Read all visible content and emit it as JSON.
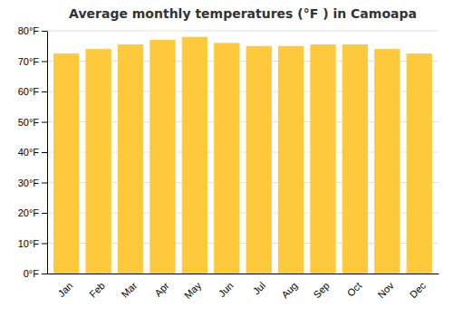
{
  "chart_data": {
    "type": "bar",
    "title": "Average monthly temperatures (°F ) in Camoapa",
    "categories": [
      "Jan",
      "Feb",
      "Mar",
      "Apr",
      "May",
      "Jun",
      "Jul",
      "Aug",
      "Sep",
      "Oct",
      "Nov",
      "Dec"
    ],
    "values": [
      72.5,
      74.0,
      75.5,
      77.0,
      78.0,
      76.0,
      75.0,
      75.0,
      75.5,
      75.5,
      74.0,
      72.5
    ],
    "color": "#FFC93C",
    "ylim": [
      0,
      80
    ],
    "yticks": [
      {
        "value": 0,
        "label": "0°F"
      },
      {
        "value": 10,
        "label": "10°F"
      },
      {
        "value": 20,
        "label": "20°F"
      },
      {
        "value": 30,
        "label": "30°F"
      },
      {
        "value": 40,
        "label": "40°F"
      },
      {
        "value": 50,
        "label": "50°F"
      },
      {
        "value": 60,
        "label": "60°F"
      },
      {
        "value": 70,
        "label": "70°F"
      },
      {
        "value": 80,
        "label": "80°F"
      }
    ],
    "grid": true
  }
}
